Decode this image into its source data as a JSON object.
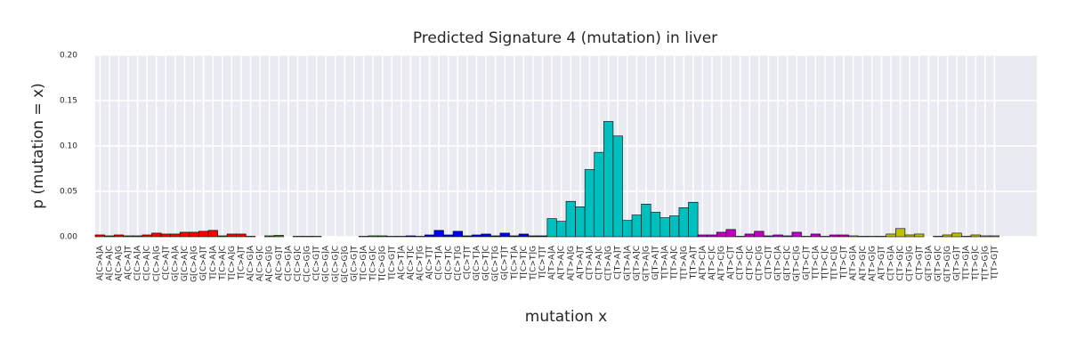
{
  "chart_data": {
    "type": "bar",
    "title": "Predicted Signature 4 (mutation) in liver",
    "xlabel": "mutation x",
    "ylabel": "p (mutation = x)",
    "categories": [
      "A[C>A]A",
      "A[C>A]C",
      "A[C>A]G",
      "A[C>A]T",
      "C[C>A]A",
      "C[C>A]C",
      "C[C>A]G",
      "C[C>A]T",
      "G[C>A]A",
      "G[C>A]C",
      "G[C>A]G",
      "G[C>A]T",
      "T[C>A]A",
      "T[C>A]C",
      "T[C>A]G",
      "T[C>A]T",
      "A[C>G]A",
      "A[C>G]C",
      "A[C>G]G",
      "A[C>G]T",
      "C[C>G]A",
      "C[C>G]C",
      "C[C>G]G",
      "C[C>G]T",
      "G[C>G]A",
      "G[C>G]C",
      "G[C>G]G",
      "G[C>G]T",
      "T[C>G]A",
      "T[C>G]C",
      "T[C>G]G",
      "T[C>G]T",
      "A[C>T]A",
      "A[C>T]C",
      "A[C>T]G",
      "A[C>T]T",
      "C[C>T]A",
      "C[C>T]C",
      "C[C>T]G",
      "C[C>T]T",
      "G[C>T]A",
      "G[C>T]C",
      "G[C>T]G",
      "G[C>T]T",
      "T[C>T]A",
      "T[C>T]C",
      "T[C>T]G",
      "T[C>T]T",
      "A[T>A]A",
      "A[T>A]C",
      "A[T>A]G",
      "A[T>A]T",
      "C[T>A]A",
      "C[T>A]C",
      "C[T>A]G",
      "C[T>A]T",
      "G[T>A]A",
      "G[T>A]C",
      "G[T>A]G",
      "G[T>A]T",
      "T[T>A]A",
      "T[T>A]C",
      "T[T>A]G",
      "T[T>A]T",
      "A[T>C]A",
      "A[T>C]C",
      "A[T>C]G",
      "A[T>C]T",
      "C[T>C]A",
      "C[T>C]C",
      "C[T>C]G",
      "C[T>C]T",
      "G[T>C]A",
      "G[T>C]C",
      "G[T>C]G",
      "G[T>C]T",
      "T[T>C]A",
      "T[T>C]C",
      "T[T>C]G",
      "T[T>C]T",
      "A[T>G]A",
      "A[T>G]C",
      "A[T>G]G",
      "A[T>G]T",
      "C[T>G]A",
      "C[T>G]C",
      "C[T>G]G",
      "C[T>G]T",
      "G[T>G]A",
      "G[T>G]C",
      "G[T>G]G",
      "G[T>G]T",
      "T[T>G]A",
      "T[T>G]C",
      "T[T>G]G",
      "T[T>G]T"
    ],
    "values": [
      0.002,
      0.001,
      0.002,
      0.001,
      0.001,
      0.002,
      0.004,
      0.003,
      0.003,
      0.005,
      0.005,
      0.006,
      0.007,
      0.001,
      0.003,
      0.003,
      0.0005,
      0,
      0.001,
      0.0015,
      0,
      0.0005,
      0.0005,
      0.0005,
      0,
      0,
      0,
      0,
      0.0005,
      0.001,
      0.001,
      0.0005,
      0.0005,
      0.001,
      0.0005,
      0.002,
      0.007,
      0.002,
      0.006,
      0.001,
      0.002,
      0.003,
      0.001,
      0.004,
      0.001,
      0.003,
      0.001,
      0.001,
      0.02,
      0.017,
      0.039,
      0.033,
      0.074,
      0.093,
      0.127,
      0.111,
      0.018,
      0.024,
      0.036,
      0.027,
      0.021,
      0.023,
      0.032,
      0.038,
      0.002,
      0.002,
      0.005,
      0.008,
      0.0005,
      0.003,
      0.006,
      0.001,
      0.002,
      0.001,
      0.005,
      0.0005,
      0.003,
      0.0005,
      0.002,
      0.002,
      0.001,
      0.0005,
      0.0005,
      0.0005,
      0.003,
      0.009,
      0.002,
      0.003,
      0,
      0.0005,
      0.002,
      0.004,
      0.0005,
      0.002,
      0.001,
      0.001
    ],
    "colors": [
      "#ff0000",
      "#ff0000",
      "#ff0000",
      "#ff0000",
      "#ff0000",
      "#ff0000",
      "#ff0000",
      "#ff0000",
      "#ff0000",
      "#ff0000",
      "#ff0000",
      "#ff0000",
      "#ff0000",
      "#ff0000",
      "#ff0000",
      "#ff0000",
      "#1a9e1a",
      "#1a9e1a",
      "#1a9e1a",
      "#1a9e1a",
      "#1a9e1a",
      "#1a9e1a",
      "#1a9e1a",
      "#1a9e1a",
      "#1a9e1a",
      "#1a9e1a",
      "#1a9e1a",
      "#1a9e1a",
      "#1a9e1a",
      "#1a9e1a",
      "#1a9e1a",
      "#1a9e1a",
      "#0000ff",
      "#0000ff",
      "#0000ff",
      "#0000ff",
      "#0000ff",
      "#0000ff",
      "#0000ff",
      "#0000ff",
      "#0000ff",
      "#0000ff",
      "#0000ff",
      "#0000ff",
      "#0000ff",
      "#0000ff",
      "#0000ff",
      "#0000ff",
      "#00bfbf",
      "#00bfbf",
      "#00bfbf",
      "#00bfbf",
      "#00bfbf",
      "#00bfbf",
      "#00bfbf",
      "#00bfbf",
      "#00bfbf",
      "#00bfbf",
      "#00bfbf",
      "#00bfbf",
      "#00bfbf",
      "#00bfbf",
      "#00bfbf",
      "#00bfbf",
      "#bf00bf",
      "#bf00bf",
      "#bf00bf",
      "#bf00bf",
      "#bf00bf",
      "#bf00bf",
      "#bf00bf",
      "#bf00bf",
      "#bf00bf",
      "#bf00bf",
      "#bf00bf",
      "#bf00bf",
      "#bf00bf",
      "#bf00bf",
      "#bf00bf",
      "#bf00bf",
      "#bfbf00",
      "#bfbf00",
      "#bfbf00",
      "#bfbf00",
      "#bfbf00",
      "#bfbf00",
      "#bfbf00",
      "#bfbf00",
      "#bfbf00",
      "#bfbf00",
      "#bfbf00",
      "#bfbf00",
      "#bfbf00",
      "#bfbf00",
      "#bfbf00",
      "#bfbf00"
    ],
    "xlim": [
      -0.5,
      99.5
    ],
    "ylim": [
      0,
      0.2
    ],
    "yticks": [
      {
        "value": 0,
        "label": "0.00"
      },
      {
        "value": 0.05,
        "label": "0.05"
      },
      {
        "value": 0.1,
        "label": "0.10"
      },
      {
        "value": 0.15,
        "label": "0.15"
      },
      {
        "value": 0.2,
        "label": "0.20"
      }
    ],
    "grid": true
  }
}
